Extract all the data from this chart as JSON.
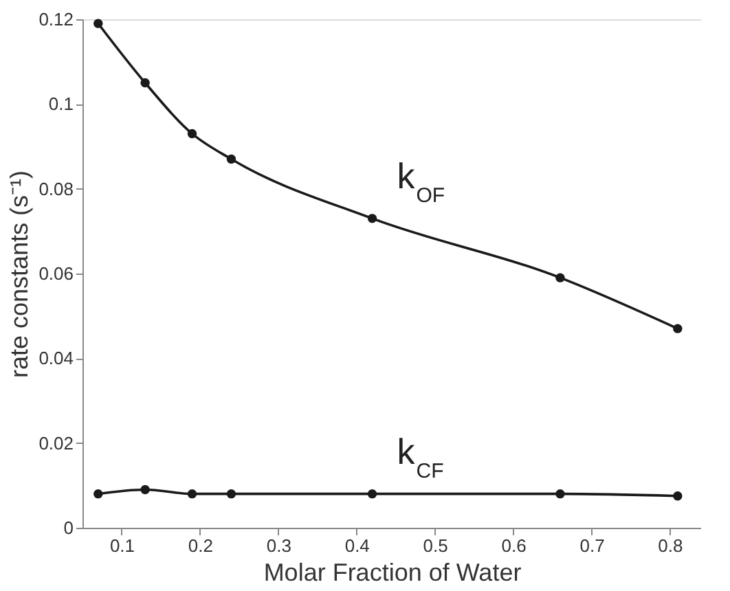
{
  "chart_data": {
    "type": "line",
    "xlabel": "Molar Fraction of Water",
    "ylabel": "rate constants (s⁻¹)",
    "x": [
      0.07,
      0.13,
      0.19,
      0.24,
      0.42,
      0.66,
      0.81
    ],
    "series": [
      {
        "color": "#1a1a1a",
        "values": [
          0.119,
          0.105,
          0.093,
          0.087,
          0.073,
          0.059,
          0.047
        ]
      },
      {
        "color": "#1a1a1a",
        "values": [
          0.008,
          0.009,
          0.008,
          0.008,
          0.008,
          0.008,
          0.0075
        ]
      }
    ],
    "marker": "circle",
    "line_style": "solid",
    "grid": false,
    "xlim": [
      0.05,
      0.84
    ],
    "xticks": [
      0.1,
      0.2,
      0.3,
      0.4,
      0.5,
      0.6,
      0.7,
      0.8
    ],
    "ylim": [
      0,
      0.12
    ],
    "yticks": [
      {
        "value": 0,
        "label": "0"
      },
      0.02,
      0.04,
      0.06,
      0.08,
      {
        "value": 0.1,
        "label": "0.1"
      },
      0.12
    ],
    "annotations": [
      "k$_{OF}$",
      "k$_{CF}$"
    ]
  }
}
